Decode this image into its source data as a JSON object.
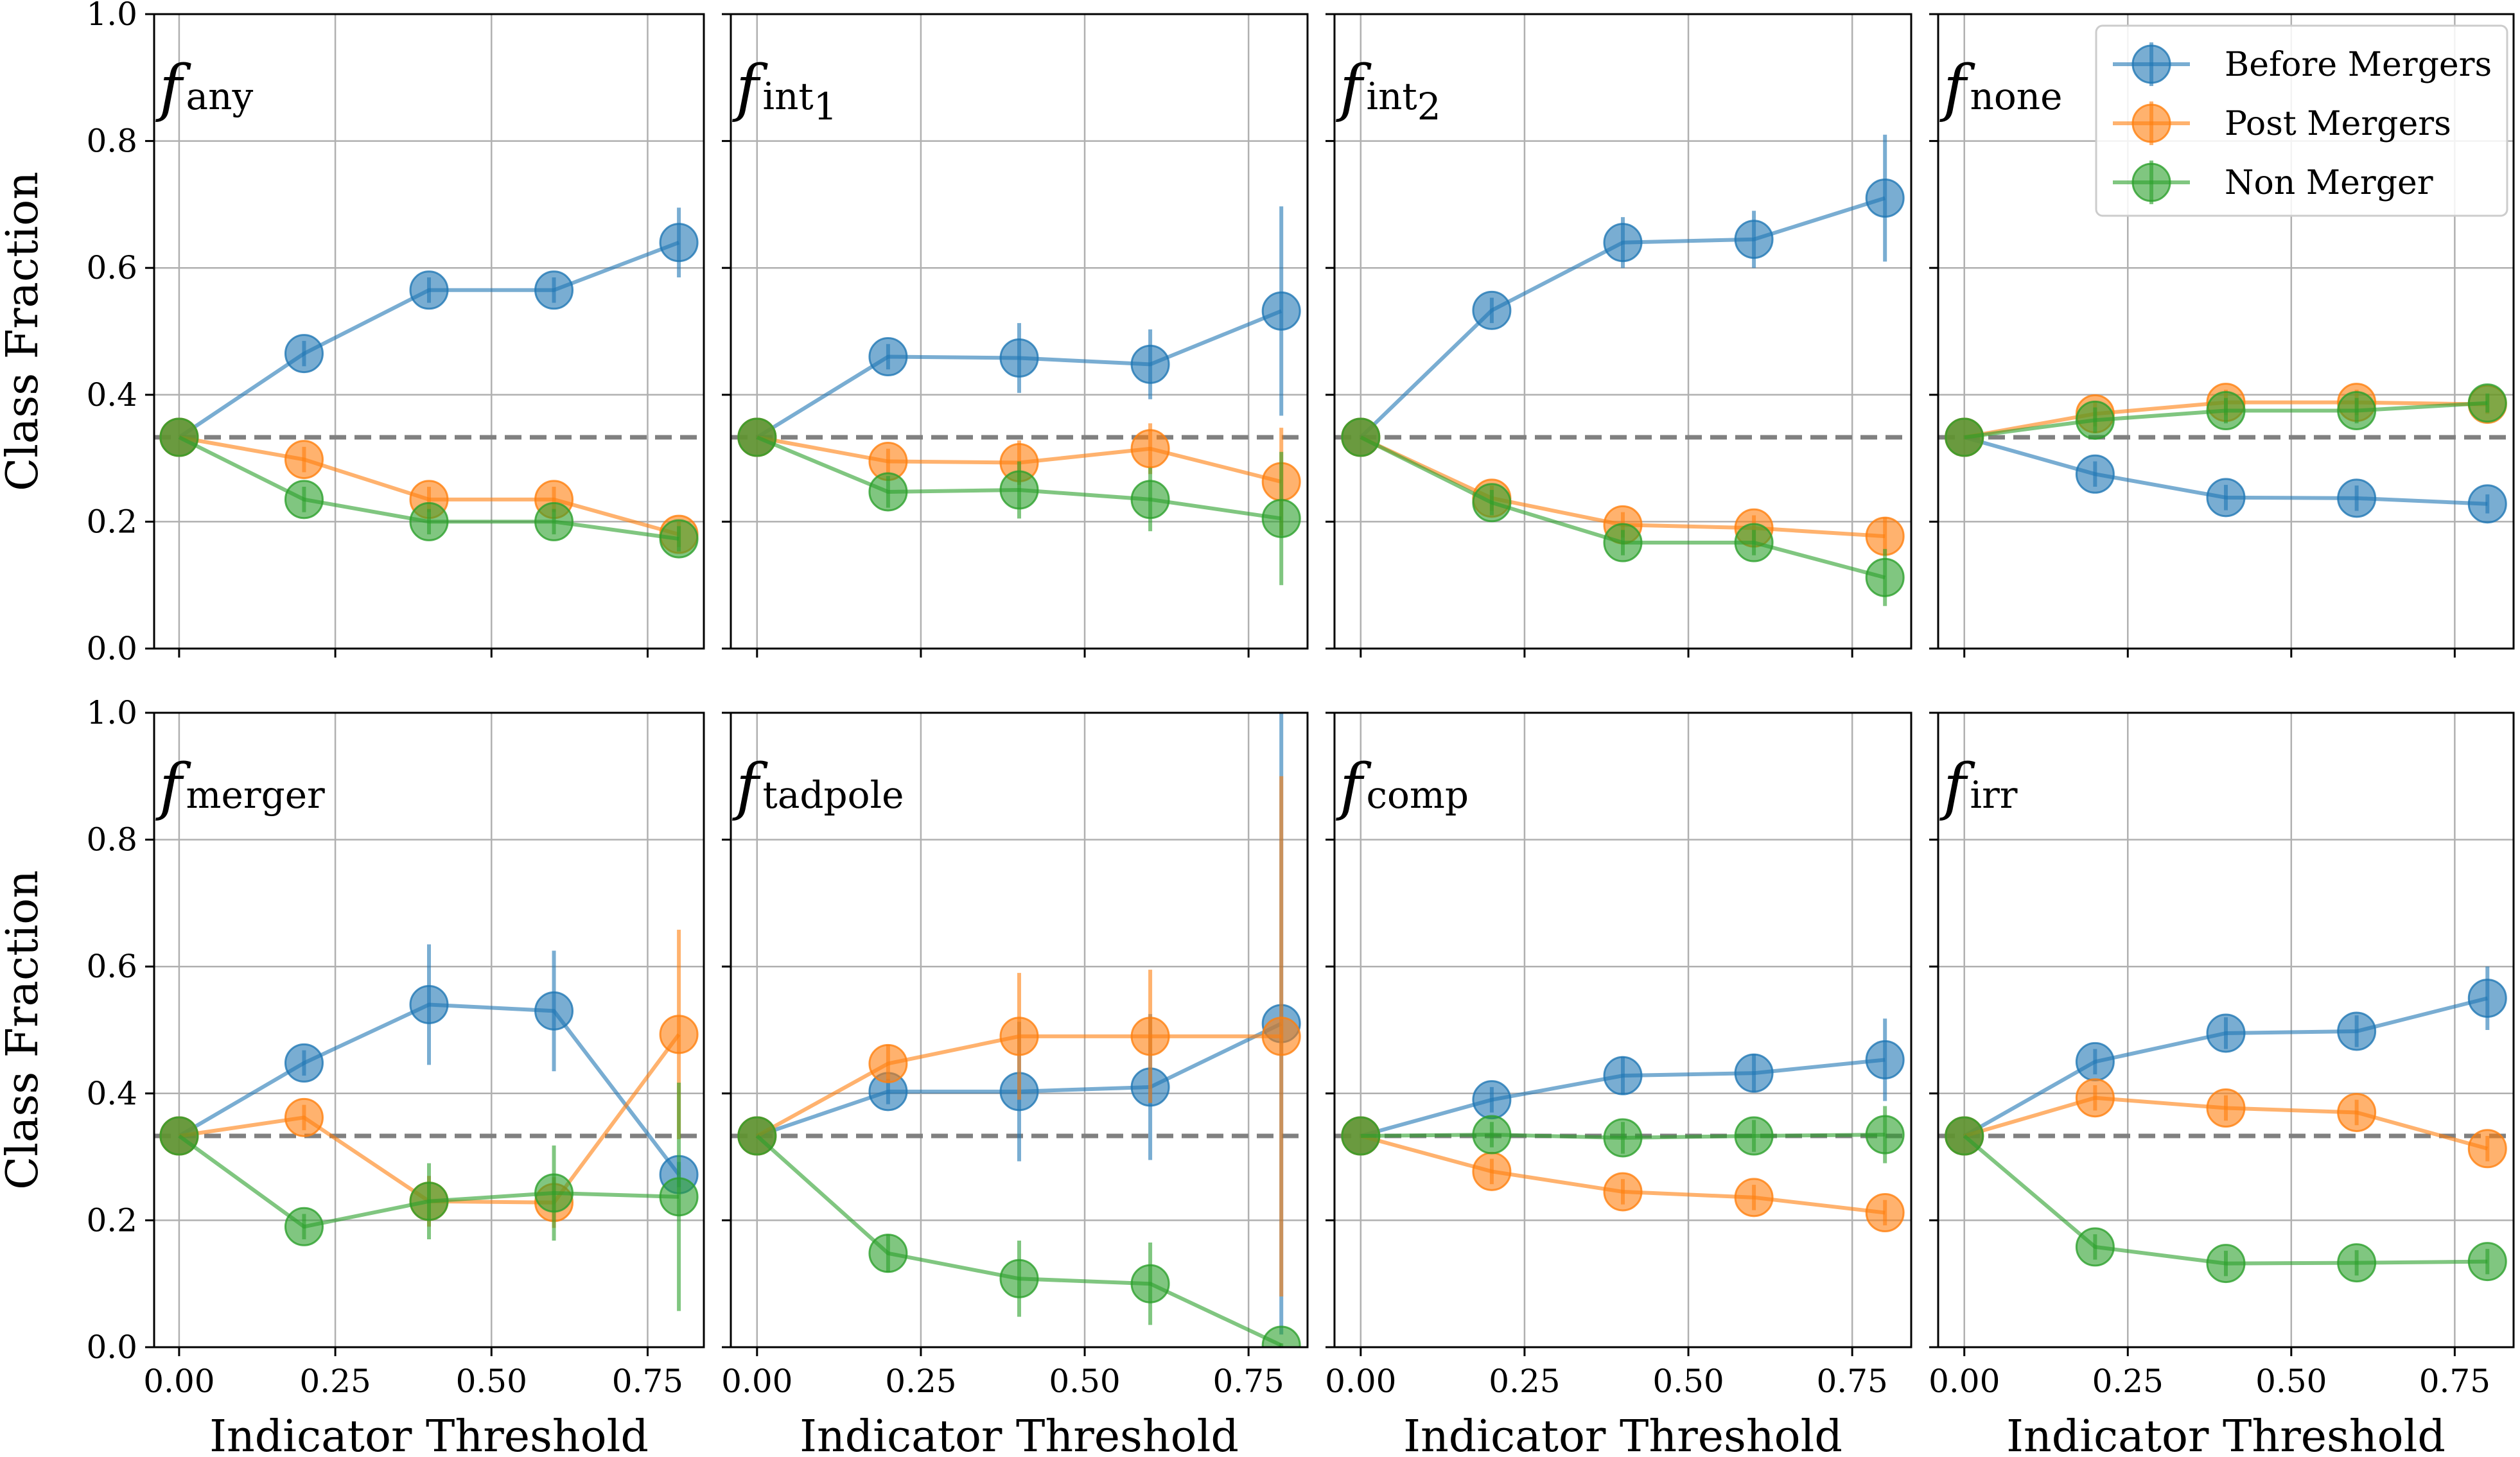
{
  "figure": {
    "ylabel": "Class Fraction",
    "xlabel": "Indicator Threshold",
    "ylim": [
      0.0,
      1.0
    ],
    "xlim": [
      -0.04,
      0.84
    ],
    "yticks": [
      "0.0",
      "0.2",
      "0.4",
      "0.6",
      "0.8",
      "1.0"
    ],
    "xticks": [
      "0.00",
      "0.25",
      "0.50",
      "0.75"
    ],
    "reference_line": 0.333,
    "legend": {
      "location": "top-right",
      "entries": [
        "Before Mergers",
        "Post Mergers",
        "Non Merger"
      ]
    },
    "colors": {
      "before": "#1f77b4",
      "post": "#ff7f0e",
      "non": "#2ca02c",
      "reference": "#808080",
      "grid": "#b0b0b0"
    }
  },
  "chart_data": [
    {
      "type": "line",
      "title": "f",
      "title_sub": "any",
      "x": [
        0.0,
        0.2,
        0.4,
        0.6,
        0.8
      ],
      "series": [
        {
          "name": "Before Mergers",
          "values": [
            0.333,
            0.465,
            0.565,
            0.565,
            0.64
          ],
          "errors": [
            0.0,
            0.02,
            0.02,
            0.02,
            0.055
          ]
        },
        {
          "name": "Post Mergers",
          "values": [
            0.333,
            0.298,
            0.235,
            0.235,
            0.18
          ],
          "errors": [
            0.0,
            0.02,
            0.02,
            0.02,
            0.02
          ]
        },
        {
          "name": "Non Merger",
          "values": [
            0.333,
            0.235,
            0.2,
            0.2,
            0.173
          ],
          "errors": [
            0.0,
            0.02,
            0.02,
            0.02,
            0.02
          ]
        }
      ]
    },
    {
      "type": "line",
      "title": "f",
      "title_sub": "int",
      "title_subsub": "1",
      "x": [
        0.0,
        0.2,
        0.4,
        0.6,
        0.8
      ],
      "series": [
        {
          "name": "Before Mergers",
          "values": [
            0.333,
            0.46,
            0.458,
            0.448,
            0.532
          ],
          "errors": [
            0.0,
            0.02,
            0.055,
            0.055,
            0.165
          ]
        },
        {
          "name": "Post Mergers",
          "values": [
            0.333,
            0.295,
            0.293,
            0.315,
            0.263
          ],
          "errors": [
            0.0,
            0.02,
            0.035,
            0.04,
            0.085
          ]
        },
        {
          "name": "Non Merger",
          "values": [
            0.333,
            0.247,
            0.25,
            0.235,
            0.205
          ],
          "errors": [
            0.0,
            0.025,
            0.045,
            0.05,
            0.105
          ]
        }
      ]
    },
    {
      "type": "line",
      "title": "f",
      "title_sub": "int",
      "title_subsub": "2",
      "x": [
        0.0,
        0.2,
        0.4,
        0.6,
        0.8
      ],
      "series": [
        {
          "name": "Before Mergers",
          "values": [
            0.333,
            0.533,
            0.64,
            0.645,
            0.71
          ],
          "errors": [
            0.0,
            0.02,
            0.04,
            0.045,
            0.1
          ]
        },
        {
          "name": "Post Mergers",
          "values": [
            0.333,
            0.237,
            0.195,
            0.19,
            0.177
          ],
          "errors": [
            0.0,
            0.02,
            0.02,
            0.02,
            0.03
          ]
        },
        {
          "name": "Non Merger",
          "values": [
            0.333,
            0.23,
            0.167,
            0.167,
            0.112
          ],
          "errors": [
            0.0,
            0.02,
            0.02,
            0.02,
            0.045
          ]
        }
      ]
    },
    {
      "type": "line",
      "title": "f",
      "title_sub": "none",
      "x": [
        0.0,
        0.2,
        0.4,
        0.6,
        0.8
      ],
      "series": [
        {
          "name": "Before Mergers",
          "values": [
            0.333,
            0.275,
            0.238,
            0.237,
            0.228
          ],
          "errors": [
            0.0,
            0.02,
            0.02,
            0.02,
            0.015
          ]
        },
        {
          "name": "Post Mergers",
          "values": [
            0.333,
            0.37,
            0.388,
            0.388,
            0.385
          ],
          "errors": [
            0.0,
            0.02,
            0.02,
            0.02,
            0.015
          ]
        },
        {
          "name": "Non Merger",
          "values": [
            0.333,
            0.36,
            0.375,
            0.375,
            0.387
          ],
          "errors": [
            0.0,
            0.02,
            0.02,
            0.02,
            0.015
          ]
        }
      ]
    },
    {
      "type": "line",
      "title": "f",
      "title_sub": "merger",
      "x": [
        0.0,
        0.2,
        0.4,
        0.6,
        0.8
      ],
      "series": [
        {
          "name": "Before Mergers",
          "values": [
            0.333,
            0.448,
            0.54,
            0.53,
            0.272
          ],
          "errors": [
            0.0,
            0.02,
            0.095,
            0.095,
            0.02
          ]
        },
        {
          "name": "Post Mergers",
          "values": [
            0.333,
            0.362,
            0.23,
            0.228,
            0.493
          ],
          "errors": [
            0.0,
            0.02,
            0.04,
            0.04,
            0.165
          ]
        },
        {
          "name": "Non Merger",
          "values": [
            0.333,
            0.19,
            0.23,
            0.243,
            0.237
          ],
          "errors": [
            0.0,
            0.02,
            0.06,
            0.075,
            0.18
          ]
        }
      ]
    },
    {
      "type": "line",
      "title": "f",
      "title_sub": "tadpole",
      "x": [
        0.0,
        0.2,
        0.4,
        0.6,
        0.8
      ],
      "series": [
        {
          "name": "Before Mergers",
          "values": [
            0.333,
            0.403,
            0.403,
            0.41,
            0.51
          ],
          "errors": [
            0.0,
            0.02,
            0.11,
            0.115,
            0.49
          ]
        },
        {
          "name": "Post Mergers",
          "values": [
            0.333,
            0.447,
            0.49,
            0.49,
            0.49
          ],
          "errors": [
            0.0,
            0.03,
            0.1,
            0.105,
            0.41
          ]
        },
        {
          "name": "Non Merger",
          "values": [
            0.333,
            0.148,
            0.108,
            0.1,
            0.003
          ],
          "errors": [
            0.0,
            0.03,
            0.06,
            0.065,
            0.003
          ]
        }
      ]
    },
    {
      "type": "line",
      "title": "f",
      "title_sub": "comp",
      "x": [
        0.0,
        0.2,
        0.4,
        0.6,
        0.8
      ],
      "series": [
        {
          "name": "Before Mergers",
          "values": [
            0.333,
            0.39,
            0.428,
            0.432,
            0.453
          ],
          "errors": [
            0.0,
            0.02,
            0.03,
            0.03,
            0.065
          ]
        },
        {
          "name": "Post Mergers",
          "values": [
            0.333,
            0.277,
            0.245,
            0.236,
            0.212
          ],
          "errors": [
            0.0,
            0.02,
            0.02,
            0.02,
            0.02
          ]
        },
        {
          "name": "Non Merger",
          "values": [
            0.333,
            0.335,
            0.33,
            0.333,
            0.335
          ],
          "errors": [
            0.0,
            0.02,
            0.025,
            0.025,
            0.045
          ]
        }
      ]
    },
    {
      "type": "line",
      "title": "f",
      "title_sub": "irr",
      "x": [
        0.0,
        0.2,
        0.4,
        0.6,
        0.8
      ],
      "series": [
        {
          "name": "Before Mergers",
          "values": [
            0.333,
            0.45,
            0.495,
            0.498,
            0.55
          ],
          "errors": [
            0.0,
            0.02,
            0.025,
            0.025,
            0.05
          ]
        },
        {
          "name": "Post Mergers",
          "values": [
            0.333,
            0.393,
            0.377,
            0.37,
            0.313
          ],
          "errors": [
            0.0,
            0.02,
            0.02,
            0.02,
            0.02
          ]
        },
        {
          "name": "Non Merger",
          "values": [
            0.333,
            0.158,
            0.132,
            0.133,
            0.135
          ],
          "errors": [
            0.0,
            0.02,
            0.02,
            0.02,
            0.02
          ]
        }
      ]
    }
  ]
}
